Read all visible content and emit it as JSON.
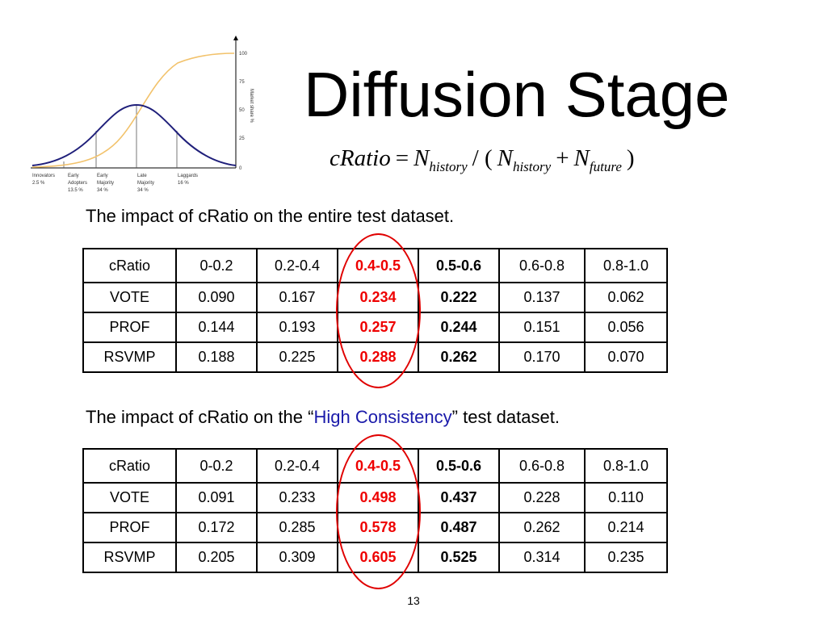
{
  "slide": {
    "title": "Diffusion Stage",
    "formula": {
      "lhs": "cRatio",
      "equals": "=",
      "n": "N",
      "sub_history": "history",
      "slash_open": "/ (",
      "plus": "+",
      "sub_future": "future",
      "close": ")"
    },
    "diffusion_chart": {
      "y_ticks": [
        "100",
        "75",
        "50",
        "25",
        "0"
      ],
      "y_axis_label": "Market share %",
      "segments": [
        {
          "name": "Innovators",
          "share": "2.5 %"
        },
        {
          "name": "Early Adopters",
          "share": "13.5 %"
        },
        {
          "name": "Early Majority",
          "share": "34 %"
        },
        {
          "name": "Late Majority",
          "share": "34 %"
        },
        {
          "name": "Laggards",
          "share": "16 %"
        }
      ],
      "colors": {
        "bell": "#1f1f7a",
        "s_curve": "#f2c26b",
        "divider": "#555555"
      }
    },
    "caption1": "The impact of cRatio on the entire test dataset.",
    "caption2": {
      "before": "The impact of cRatio on the “",
      "highlight": "High Consistency",
      "after": "” test dataset."
    },
    "table1": {
      "header": [
        "cRatio",
        "0-0.2",
        "0.2-0.4",
        "0.4-0.5",
        "0.5-0.6",
        "0.6-0.8",
        "0.8-1.0"
      ],
      "rows": [
        [
          "VOTE",
          "0.090",
          "0.167",
          "0.234",
          "0.222",
          "0.137",
          "0.062"
        ],
        [
          "PROF",
          "0.144",
          "0.193",
          "0.257",
          "0.244",
          "0.151",
          "0.056"
        ],
        [
          "RSVMP",
          "0.188",
          "0.225",
          "0.288",
          "0.262",
          "0.170",
          "0.070"
        ]
      ]
    },
    "table2": {
      "header": [
        "cRatio",
        "0-0.2",
        "0.2-0.4",
        "0.4-0.5",
        "0.5-0.6",
        "0.6-0.8",
        "0.8-1.0"
      ],
      "rows": [
        [
          "VOTE",
          "0.091",
          "0.233",
          "0.498",
          "0.437",
          "0.228",
          "0.110"
        ],
        [
          "PROF",
          "0.172",
          "0.285",
          "0.578",
          "0.487",
          "0.262",
          "0.214"
        ],
        [
          "RSVMP",
          "0.205",
          "0.309",
          "0.605",
          "0.525",
          "0.314",
          "0.235"
        ]
      ]
    },
    "highlight_color": "#ee0000",
    "page_number": "13"
  }
}
